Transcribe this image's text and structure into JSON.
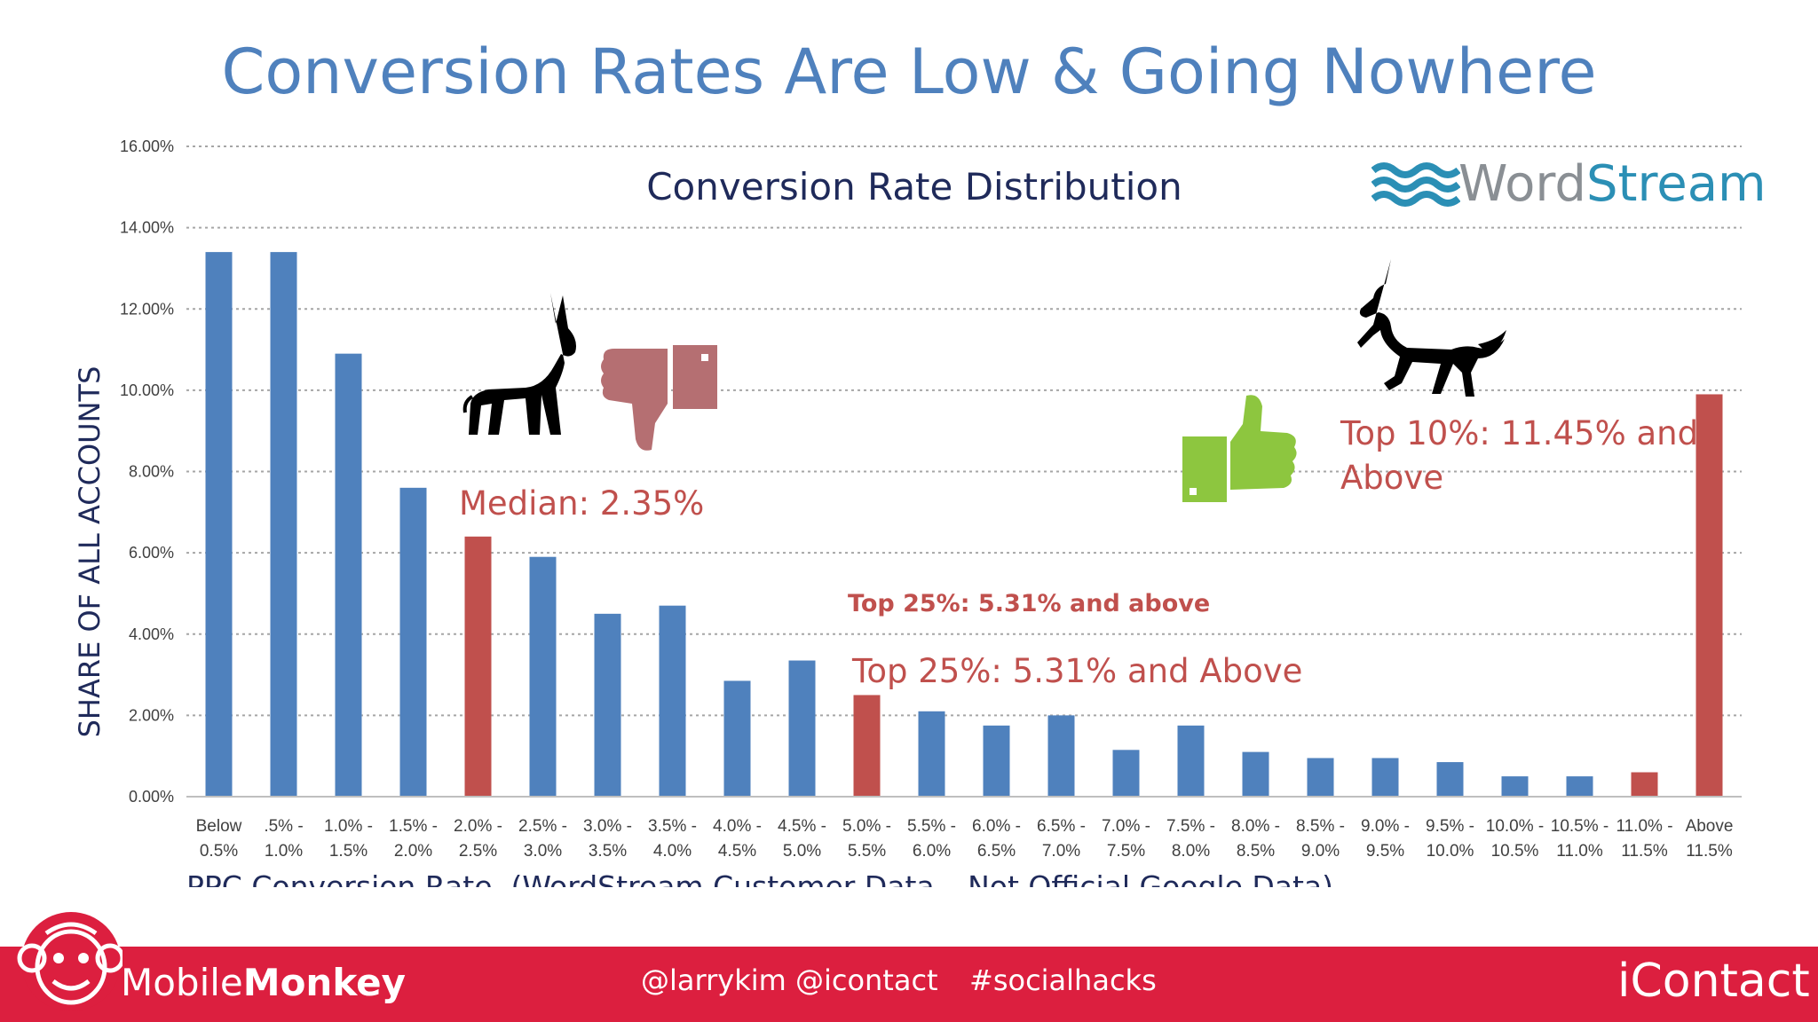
{
  "slide_title": "Conversion Rates Are Low & Going Nowhere",
  "chart_data": {
    "type": "bar",
    "title": "Conversion Rate Distribution",
    "xlabel": "PPC Conversion Rate.  (WordStream Customer Data – Not Official Google Data)",
    "ylabel": "SHARE OF ALL ACCOUNTS",
    "ylim": [
      0,
      16
    ],
    "yticks": [
      "0.00%",
      "2.00%",
      "4.00%",
      "6.00%",
      "8.00%",
      "10.00%",
      "12.00%",
      "14.00%",
      "16.00%"
    ],
    "grid": true,
    "categories": [
      [
        "Below",
        "0.5%"
      ],
      [
        ".5% -",
        "1.0%"
      ],
      [
        "1.0% -",
        "1.5%"
      ],
      [
        "1.5% -",
        "2.0%"
      ],
      [
        "2.0% -",
        "2.5%"
      ],
      [
        "2.5% -",
        "3.0%"
      ],
      [
        "3.0% -",
        "3.5%"
      ],
      [
        "3.5% -",
        "4.0%"
      ],
      [
        "4.0% -",
        "4.5%"
      ],
      [
        "4.5% -",
        "5.0%"
      ],
      [
        "5.0% -",
        "5.5%"
      ],
      [
        "5.5% -",
        "6.0%"
      ],
      [
        "6.0% -",
        "6.5%"
      ],
      [
        "6.5% -",
        "7.0%"
      ],
      [
        "7.0% -",
        "7.5%"
      ],
      [
        "7.5% -",
        "8.0%"
      ],
      [
        "8.0% -",
        "8.5%"
      ],
      [
        "8.5% -",
        "9.0%"
      ],
      [
        "9.0% -",
        "9.5%"
      ],
      [
        "9.5% -",
        "10.0%"
      ],
      [
        "10.0% -",
        "10.5%"
      ],
      [
        "10.5% -",
        "11.0%"
      ],
      [
        "11.0% -",
        "11.5%"
      ],
      [
        "Above",
        "11.5%"
      ]
    ],
    "values": [
      13.4,
      13.4,
      10.9,
      7.6,
      6.4,
      5.9,
      4.5,
      4.7,
      2.85,
      3.35,
      2.5,
      2.1,
      1.75,
      2.0,
      1.15,
      1.75,
      1.1,
      0.95,
      0.95,
      0.85,
      0.5,
      0.5,
      0.6,
      9.9
    ],
    "highlighted": [
      4,
      10,
      22,
      23
    ],
    "colors": {
      "default": "#4f81bd",
      "highlight": "#c0504d"
    }
  },
  "annotations": {
    "median": "Median: 2.35%",
    "top25_small": "Top 25%: 5.31% and above",
    "top25_big": "Top 25%: 5.31% and Above",
    "top10_line1": "Top 10%: 11.45% and",
    "top10_line2": "Above"
  },
  "icons": {
    "donkey": "donkey-icon",
    "thumbs_down": "thumbs-down-icon",
    "unicorn": "unicorn-icon",
    "thumbs_up": "thumbs-up-icon"
  },
  "wordstream_logo": {
    "part1": "Word",
    "part2": "Stream"
  },
  "footer": {
    "brand_left_prefix": "Mobile",
    "brand_left_bold": "Monkey",
    "handles": "@larrykim  @icontact",
    "hashtag": "#socialhacks",
    "brand_right": "iContact",
    "bg_color": "#dc1f3f"
  }
}
